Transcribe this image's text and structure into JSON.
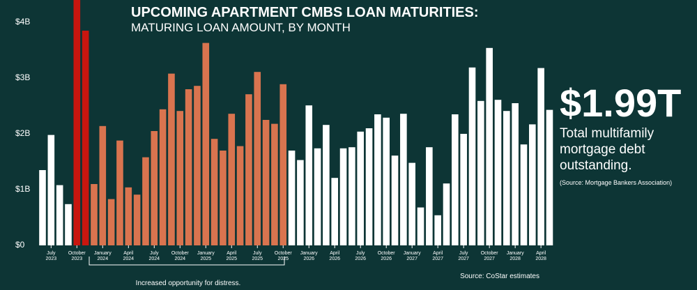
{
  "chart_data": {
    "type": "bar",
    "title": "UPCOMING APARTMENT CMBS LOAN MATURITIES:",
    "subtitle": "MATURING LOAN AMOUNT, BY MONTH",
    "categories": [
      null,
      "July 2023",
      null,
      null,
      "October 2023",
      null,
      null,
      "January 2024",
      null,
      null,
      "April 2024",
      null,
      null,
      "July 2024",
      null,
      null,
      "October 2024",
      null,
      null,
      "January 2025",
      null,
      null,
      "April 2025",
      null,
      null,
      "July 2025",
      null,
      null,
      "October 2025",
      null,
      null,
      "January 2026",
      null,
      null,
      "April 2026",
      null,
      null,
      "July 2026",
      null,
      null,
      "October 2026",
      null,
      null,
      "January 2027",
      null,
      null,
      "April 2027",
      null,
      null,
      "July 2027",
      null,
      null,
      "October 2027",
      null,
      null,
      "January 2028",
      null,
      null,
      "April 2028",
      null
    ],
    "values": [
      1.35,
      1.98,
      1.08,
      0.74,
      4.4,
      3.85,
      1.1,
      2.14,
      0.83,
      1.88,
      1.04,
      0.91,
      1.58,
      2.05,
      2.44,
      3.08,
      2.41,
      2.8,
      2.86,
      3.63,
      1.91,
      1.7,
      2.36,
      1.78,
      2.71,
      3.11,
      2.25,
      2.18,
      2.89,
      1.7,
      1.53,
      2.51,
      1.74,
      2.16,
      1.21,
      1.74,
      1.76,
      2.04,
      2.1,
      2.35,
      2.29,
      1.61,
      2.36,
      1.48,
      0.68,
      1.76,
      0.54,
      1.11,
      2.35,
      2.0,
      3.19,
      2.59,
      3.54,
      2.61,
      2.41,
      2.55,
      1.81,
      2.17,
      3.18,
      2.43
    ],
    "colors": [
      "#ffffff",
      "#ffffff",
      "#ffffff",
      "#ffffff",
      "#c8160f",
      "#c8160f",
      "#d9744f",
      "#d9744f",
      "#d9744f",
      "#d9744f",
      "#d9744f",
      "#d9744f",
      "#d9744f",
      "#d9744f",
      "#d9744f",
      "#d9744f",
      "#d9744f",
      "#d9744f",
      "#d9744f",
      "#d9744f",
      "#d9744f",
      "#d9744f",
      "#d9744f",
      "#d9744f",
      "#d9744f",
      "#d9744f",
      "#d9744f",
      "#d9744f",
      "#d9744f",
      "#ffffff",
      "#ffffff",
      "#ffffff",
      "#ffffff",
      "#ffffff",
      "#ffffff",
      "#ffffff",
      "#ffffff",
      "#ffffff",
      "#ffffff",
      "#ffffff",
      "#ffffff",
      "#ffffff",
      "#ffffff",
      "#ffffff",
      "#ffffff",
      "#ffffff",
      "#ffffff",
      "#ffffff",
      "#ffffff",
      "#ffffff",
      "#ffffff",
      "#ffffff",
      "#ffffff",
      "#ffffff",
      "#ffffff",
      "#ffffff",
      "#ffffff",
      "#ffffff",
      "#ffffff",
      "#ffffff"
    ],
    "ylim": [
      0,
      4.4
    ],
    "yticks": [
      {
        "value": 0,
        "label": "$0"
      },
      {
        "value": 1,
        "label": "$1B"
      },
      {
        "value": 2,
        "label": "$2B"
      },
      {
        "value": 3,
        "label": "$3B"
      },
      {
        "value": 4,
        "label": "$4B"
      }
    ],
    "grid": false,
    "annotation": "Increased opportunity for distress.",
    "source": "Source: CoStar estimates"
  },
  "callout": {
    "value": "$1.99T",
    "text": "Total multifamily mortgage debt outstanding.",
    "source": "(Source: Mortgage Bankers Association)"
  }
}
